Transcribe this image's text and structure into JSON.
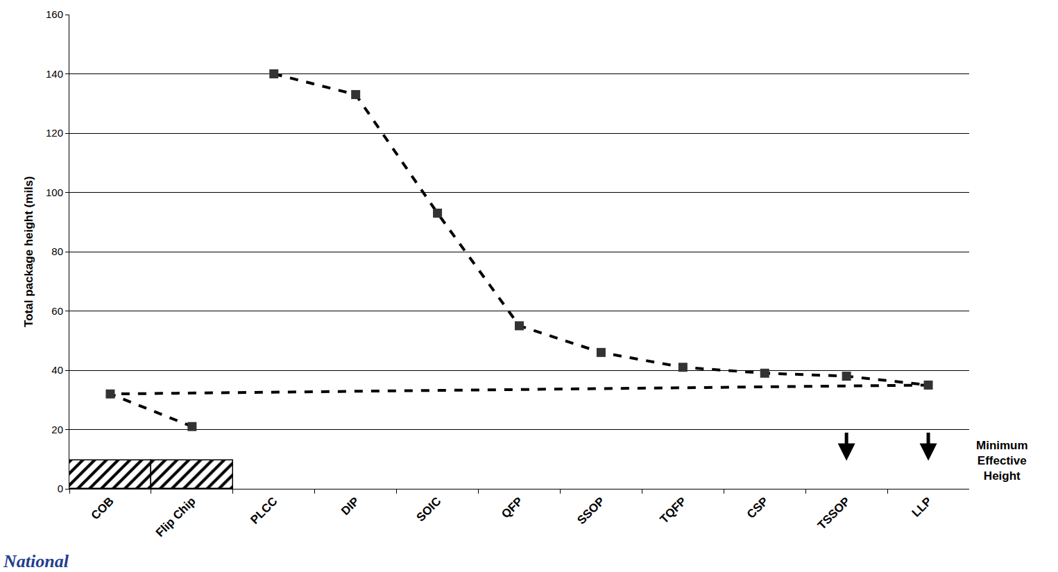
{
  "chart_data": {
    "type": "line",
    "categories": [
      "PLCC",
      "DIP",
      "SOIC",
      "QFP",
      "SSOP",
      "TQFP",
      "CSP",
      "TSSOP",
      "LLP",
      "COB",
      "Flip Chip"
    ],
    "values": [
      140,
      133,
      93,
      55,
      46,
      41,
      39,
      38,
      35,
      32,
      21
    ],
    "color": "#000000",
    "line_style": "dash",
    "marker": "square",
    "y_title": "Total package height (mils)",
    "ylim": [
      0,
      160
    ],
    "yticks": [
      0,
      20,
      40,
      60,
      80,
      100,
      120,
      140,
      160
    ],
    "grid": true,
    "annotations": [
      {
        "text": "Minimum Effective Height",
        "value": 9.5,
        "categories": [
          "COB",
          "Flip Chip"
        ]
      }
    ],
    "logo": "National"
  }
}
